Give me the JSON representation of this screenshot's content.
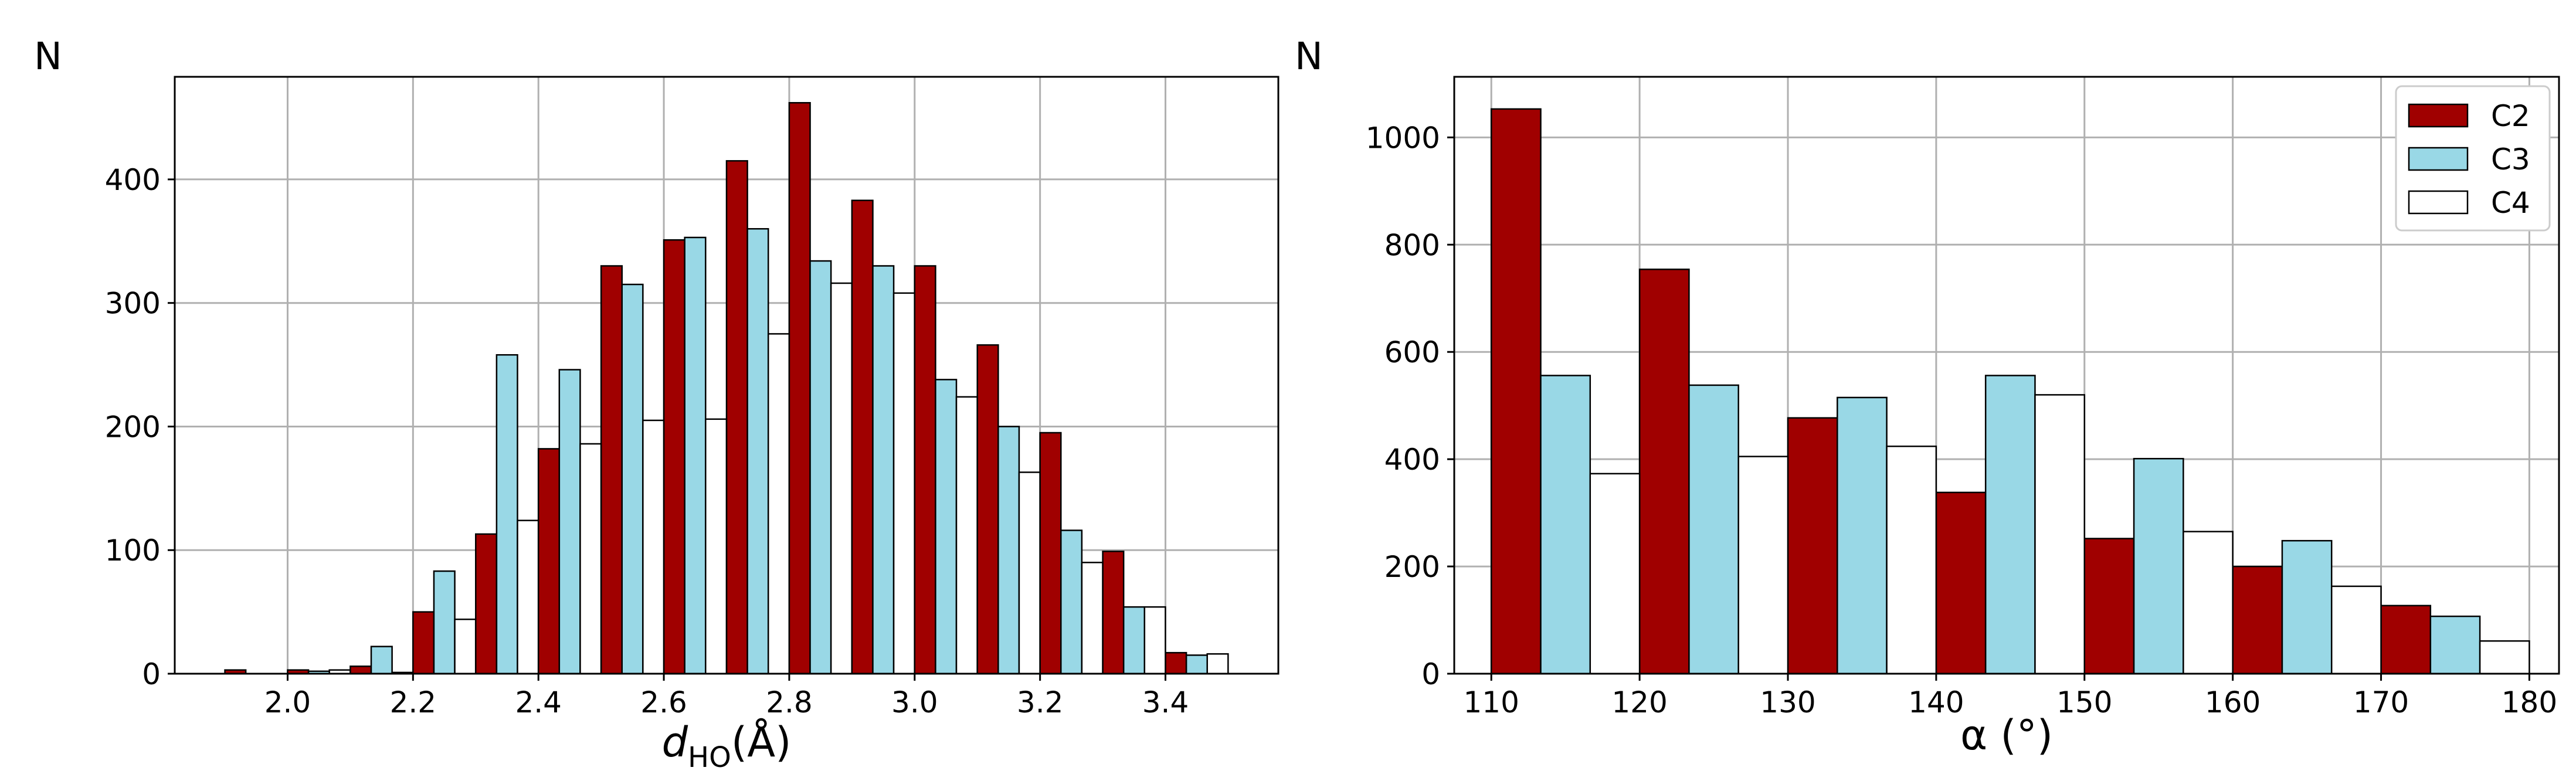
{
  "colors": {
    "C2": "#a00000",
    "C3": "#99d8e6",
    "C4": "#ffffff"
  },
  "chart_data": [
    {
      "type": "bar",
      "ylabel": "N",
      "xlabel_main": "d",
      "xlabel_sub": "HO",
      "xlabel_unit": "(Å)",
      "xlim": [
        1.82,
        3.58
      ],
      "ylim": [
        0,
        483
      ],
      "xticks": [
        2.0,
        2.2,
        2.4,
        2.6,
        2.8,
        3.0,
        3.2,
        3.4
      ],
      "xtick_labels": [
        "2.0",
        "2.2",
        "2.4",
        "2.6",
        "2.8",
        "3.0",
        "3.2",
        "3.4"
      ],
      "yticks": [
        0,
        100,
        200,
        300,
        400
      ],
      "ytick_labels": [
        "0",
        "100",
        "200",
        "300",
        "400"
      ],
      "group_starts": [
        1.9,
        2.0,
        2.1,
        2.2,
        2.3,
        2.4,
        2.5,
        2.6,
        2.7,
        2.8,
        2.9,
        3.0,
        3.1,
        3.2,
        3.3,
        3.4
      ],
      "bar_width": 0.0333,
      "series": [
        {
          "name": "C2",
          "values": [
            3,
            3,
            6,
            50,
            113,
            182,
            330,
            351,
            415,
            462,
            383,
            330,
            266,
            195,
            99,
            17
          ]
        },
        {
          "name": "C3",
          "values": [
            0,
            2,
            22,
            83,
            258,
            246,
            315,
            353,
            360,
            334,
            330,
            238,
            200,
            116,
            54,
            15
          ]
        },
        {
          "name": "C4",
          "values": [
            0,
            3,
            1,
            44,
            124,
            186,
            205,
            206,
            275,
            316,
            308,
            224,
            163,
            90,
            54,
            16
          ]
        }
      ]
    },
    {
      "type": "bar",
      "ylabel": "N",
      "xlabel": "α (°)",
      "xlim": [
        107.5,
        182
      ],
      "ylim": [
        0,
        1113
      ],
      "xticks": [
        110,
        120,
        130,
        140,
        150,
        160,
        170,
        180
      ],
      "xtick_labels": [
        "110",
        "120",
        "130",
        "140",
        "150",
        "160",
        "170",
        "180"
      ],
      "yticks": [
        0,
        200,
        400,
        600,
        800,
        1000
      ],
      "ytick_labels": [
        "0",
        "200",
        "400",
        "600",
        "800",
        "1000"
      ],
      "group_starts": [
        110,
        120,
        130,
        140,
        150,
        160,
        170
      ],
      "bar_width": 3.333,
      "legend_position": "top-right",
      "legend": [
        "C2",
        "C3",
        "C4"
      ],
      "series": [
        {
          "name": "C2",
          "values": [
            1053,
            754,
            477,
            338,
            252,
            200,
            127
          ]
        },
        {
          "name": "C3",
          "values": [
            556,
            538,
            515,
            556,
            401,
            248,
            107
          ]
        },
        {
          "name": "C4",
          "values": [
            373,
            405,
            424,
            520,
            265,
            163,
            61
          ]
        }
      ]
    }
  ]
}
